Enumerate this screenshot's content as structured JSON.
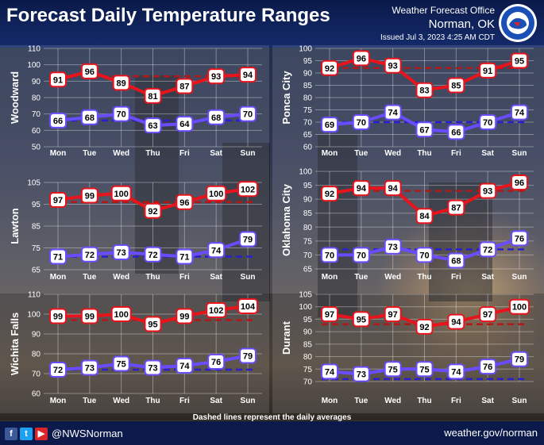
{
  "header": {
    "title": "Forecast Daily Temperature Ranges",
    "office": "Weather Forecast Office",
    "location": "Norman, OK",
    "issued": "Issued Jul 3, 2023 4:25 AM CDT"
  },
  "footnote": "Dashed lines represent the daily averages",
  "footer": {
    "handle": "@NWSNorman",
    "website": "weather.gov/norman"
  },
  "colors": {
    "high": "#e8141c",
    "low": "#6a4cff",
    "high_avg": "#b21818",
    "low_avg": "#2a1fd0"
  },
  "chart_data": [
    {
      "type": "line",
      "title": "Woodward",
      "categories": [
        "Mon",
        "Tue",
        "Wed",
        "Thu",
        "Fri",
        "Sat",
        "Sun"
      ],
      "yticks": [
        "110",
        "100",
        "90",
        "80",
        "70",
        "60",
        "50"
      ],
      "ylim": [
        50,
        110
      ],
      "series": [
        {
          "name": "High",
          "values": [
            91,
            96,
            89,
            81,
            87,
            93,
            94
          ],
          "avg": 93
        },
        {
          "name": "Low",
          "values": [
            66,
            68,
            70,
            63,
            64,
            68,
            70
          ],
          "avg": 66
        }
      ]
    },
    {
      "type": "line",
      "title": "Ponca City",
      "categories": [
        "Mon",
        "Tue",
        "Wed",
        "Thu",
        "Fri",
        "Sat",
        "Sun"
      ],
      "yticks": [
        "100",
        "95",
        "90",
        "85",
        "80",
        "75",
        "70",
        "65",
        "60"
      ],
      "ylim": [
        60,
        100
      ],
      "series": [
        {
          "name": "High",
          "values": [
            92,
            96,
            93,
            83,
            85,
            91,
            95
          ],
          "avg": 92
        },
        {
          "name": "Low",
          "values": [
            69,
            70,
            74,
            67,
            66,
            70,
            74
          ],
          "avg": 70
        }
      ]
    },
    {
      "type": "line",
      "title": "Lawton",
      "categories": [
        "Mon",
        "Tue",
        "Wed",
        "Thu",
        "Fri",
        "Sat",
        "Sun"
      ],
      "yticks": [
        "105",
        "95",
        "85",
        "75",
        "65"
      ],
      "ylim": [
        65,
        105
      ],
      "series": [
        {
          "name": "High",
          "values": [
            97,
            99,
            100,
            92,
            96,
            100,
            102
          ],
          "avg": 96
        },
        {
          "name": "Low",
          "values": [
            71,
            72,
            73,
            72,
            71,
            74,
            79
          ],
          "avg": 71
        }
      ]
    },
    {
      "type": "line",
      "title": "Oklahoma City",
      "categories": [
        "Mon",
        "Tue",
        "Wed",
        "Thu",
        "Fri",
        "Sat",
        "Sun"
      ],
      "yticks": [
        "100",
        "95",
        "90",
        "85",
        "80",
        "75",
        "70",
        "65"
      ],
      "ylim": [
        65,
        100
      ],
      "series": [
        {
          "name": "High",
          "values": [
            92,
            94,
            94,
            84,
            87,
            93,
            96
          ],
          "avg": 93
        },
        {
          "name": "Low",
          "values": [
            70,
            70,
            73,
            70,
            68,
            72,
            76
          ],
          "avg": 72
        }
      ]
    },
    {
      "type": "line",
      "title": "Wichita Falls",
      "categories": [
        "Mon",
        "Tue",
        "Wed",
        "Thu",
        "Fri",
        "Sat",
        "Sun"
      ],
      "yticks": [
        "110",
        "100",
        "90",
        "80",
        "70",
        "60"
      ],
      "ylim": [
        60,
        110
      ],
      "series": [
        {
          "name": "High",
          "values": [
            99,
            99,
            100,
            95,
            99,
            102,
            104
          ],
          "avg": 97
        },
        {
          "name": "Low",
          "values": [
            72,
            73,
            75,
            73,
            74,
            76,
            79
          ],
          "avg": 72
        }
      ]
    },
    {
      "type": "line",
      "title": "Durant",
      "categories": [
        "Mon",
        "Tue",
        "Wed",
        "Thu",
        "Fri",
        "Sat",
        "Sun"
      ],
      "yticks": [
        "105",
        "100",
        "95",
        "90",
        "85",
        "80",
        "75",
        "70"
      ],
      "ylim": [
        70,
        105
      ],
      "series": [
        {
          "name": "High",
          "values": [
            97,
            95,
            97,
            92,
            94,
            97,
            100
          ],
          "avg": 93
        },
        {
          "name": "Low",
          "values": [
            74,
            73,
            75,
            75,
            74,
            76,
            79
          ],
          "avg": 71
        }
      ]
    }
  ]
}
